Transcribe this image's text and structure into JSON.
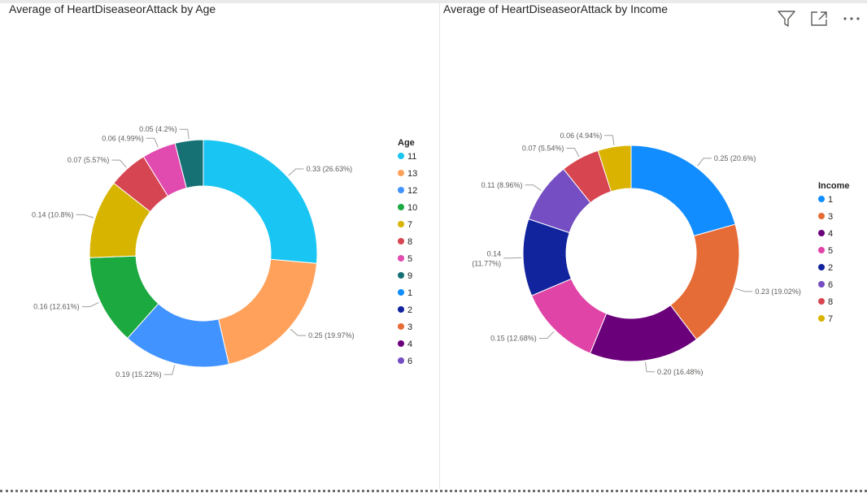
{
  "toolbar": {
    "icons": [
      "filter-icon",
      "focus-mode-icon",
      "more-options-icon"
    ]
  },
  "chart_data": [
    {
      "type": "pie",
      "donut": true,
      "title": "Average of HeartDiseaseorAttack by Age",
      "legend_title": "Age",
      "legend_position": "right",
      "legend": [
        "11",
        "13",
        "12",
        "10",
        "7",
        "8",
        "5",
        "9",
        "1",
        "2",
        "3",
        "4",
        "6"
      ],
      "legend_colors": [
        "#19C5F2",
        "#FFA15B",
        "#4193FF",
        "#1CA93F",
        "#D7B400",
        "#D64652",
        "#E14AAF",
        "#167175",
        "#118DFF",
        "#12239E",
        "#E66C37",
        "#6B007B",
        "#744EC2"
      ],
      "slices": [
        {
          "label": "11",
          "value": 0.33,
          "percent": "26.63%",
          "data_label": "0.33 (26.63%)",
          "color": "#19C5F2"
        },
        {
          "label": "13",
          "value": 0.25,
          "percent": "19.97%",
          "data_label": "0.25 (19.97%)",
          "color": "#FFA15B"
        },
        {
          "label": "12",
          "value": 0.19,
          "percent": "15.22%",
          "data_label": "0.19 (15.22%)",
          "color": "#4193FF"
        },
        {
          "label": "10",
          "value": 0.16,
          "percent": "12.61%",
          "data_label": "0.16 (12.61%)",
          "color": "#1CA93F"
        },
        {
          "label": "7",
          "value": 0.14,
          "percent": "10.8%",
          "data_label": "0.14 (10.8%)",
          "color": "#D7B400"
        },
        {
          "label": "8",
          "value": 0.07,
          "percent": "5.57%",
          "data_label": "0.07 (5.57%)",
          "color": "#D64652"
        },
        {
          "label": "5",
          "value": 0.06,
          "percent": "4.99%",
          "data_label": "0.06 (4.99%)",
          "color": "#E14AAF"
        },
        {
          "label": "9",
          "value": 0.05,
          "percent": "4.2%",
          "data_label": "0.05 (4.2%)",
          "color": "#167175"
        }
      ]
    },
    {
      "type": "pie",
      "donut": true,
      "title": "Average of HeartDiseaseorAttack by Income",
      "legend_title": "Income",
      "legend_position": "right",
      "legend": [
        "1",
        "3",
        "4",
        "5",
        "2",
        "6",
        "8",
        "7"
      ],
      "legend_colors": [
        "#118DFF",
        "#E66C37",
        "#6B007B",
        "#E044A7",
        "#12239E",
        "#744EC2",
        "#D64550",
        "#D9B300"
      ],
      "slices": [
        {
          "label": "1",
          "value": 0.25,
          "percent": "20.6%",
          "data_label": "0.25 (20.6%)",
          "color": "#118DFF"
        },
        {
          "label": "3",
          "value": 0.23,
          "percent": "19.02%",
          "data_label": "0.23 (19.02%)",
          "color": "#E66C37"
        },
        {
          "label": "4",
          "value": 0.2,
          "percent": "16.48%",
          "data_label": "0.20 (16.48%)",
          "color": "#6B007B"
        },
        {
          "label": "5",
          "value": 0.15,
          "percent": "12.68%",
          "data_label": "0.15 (12.68%)",
          "color": "#E044A7"
        },
        {
          "label": "2",
          "value": 0.14,
          "percent": "11.77%",
          "data_label": "0.14 (11.77%)",
          "color": "#12239E"
        },
        {
          "label": "6",
          "value": 0.11,
          "percent": "8.96%",
          "data_label": "0.11 (8.96%)",
          "color": "#744EC2"
        },
        {
          "label": "8",
          "value": 0.07,
          "percent": "5.54%",
          "data_label": "0.07 (5.54%)",
          "color": "#D64550"
        },
        {
          "label": "7",
          "value": 0.06,
          "percent": "4.94%",
          "data_label": "0.06 (4.94%)",
          "color": "#D9B300"
        }
      ]
    }
  ]
}
